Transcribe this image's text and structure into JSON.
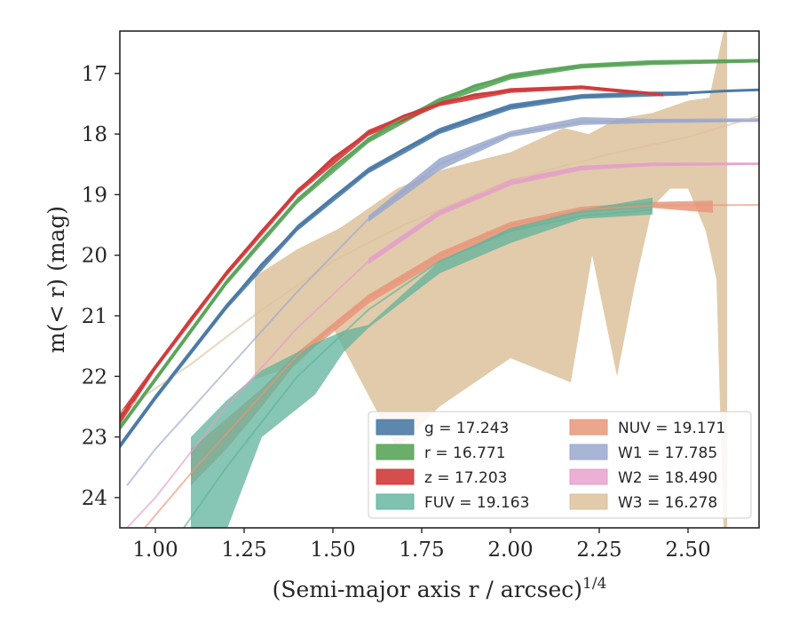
{
  "chart_data": {
    "type": "area",
    "ylabel": "m(< r) (mag)",
    "xlabel_main": "(Semi-major axis r / arcsec)",
    "xlabel_sup": "1/4",
    "xlim": [
      0.9,
      2.7
    ],
    "ylim": [
      24.5,
      16.3
    ],
    "y_inverted": true,
    "xticks": [
      "1.00",
      "1.25",
      "1.50",
      "1.75",
      "2.00",
      "2.25",
      "2.50"
    ],
    "xtick_values": [
      1.0,
      1.25,
      1.5,
      1.75,
      2.0,
      2.25,
      2.5
    ],
    "yticks": [
      "17",
      "18",
      "19",
      "20",
      "21",
      "22",
      "23",
      "24"
    ],
    "ytick_values": [
      17,
      18,
      19,
      20,
      21,
      22,
      23,
      24
    ],
    "grid": false,
    "legend_placement": "lower-right",
    "series": [
      {
        "name": "g = 17.243",
        "band": "g",
        "value": "17.243",
        "color": "#4c7aa6",
        "curve": {
          "x": [
            0.9,
            1.0,
            1.1,
            1.2,
            1.3,
            1.4,
            1.5,
            1.6,
            1.7,
            1.8,
            1.9,
            2.0,
            2.1,
            2.2,
            2.3,
            2.4,
            2.5,
            2.6,
            2.7
          ],
          "y": [
            23.15,
            22.35,
            21.6,
            20.85,
            20.15,
            19.55,
            19.05,
            18.6,
            18.25,
            17.95,
            17.72,
            17.55,
            17.45,
            17.38,
            17.35,
            17.33,
            17.32,
            17.29,
            17.27
          ]
        },
        "band_data": {
          "x": [
            0.9,
            1.0,
            1.2,
            1.4,
            1.6,
            1.8,
            2.0,
            2.2,
            2.4,
            2.5
          ],
          "lo": [
            23.1,
            22.3,
            20.8,
            19.5,
            18.55,
            17.9,
            17.5,
            17.34,
            17.3,
            17.3
          ],
          "hi": [
            23.2,
            22.4,
            20.9,
            19.6,
            18.65,
            18.0,
            17.6,
            17.42,
            17.38,
            17.36
          ]
        },
        "alpha": 0.9
      },
      {
        "name": "r = 16.771",
        "band": "r",
        "value": "16.771",
        "color": "#5aa55a",
        "curve": {
          "x": [
            0.9,
            1.0,
            1.1,
            1.2,
            1.3,
            1.4,
            1.5,
            1.6,
            1.7,
            1.8,
            1.9,
            2.0,
            2.1,
            2.2,
            2.3,
            2.4,
            2.5,
            2.6,
            2.7
          ],
          "y": [
            22.85,
            22.05,
            21.25,
            20.45,
            19.75,
            19.1,
            18.55,
            18.1,
            17.72,
            17.45,
            17.2,
            17.05,
            16.95,
            16.88,
            16.84,
            16.82,
            16.81,
            16.8,
            16.79
          ]
        },
        "band_data": {
          "x": [
            0.9,
            1.0,
            1.2,
            1.4,
            1.6,
            1.8,
            2.0,
            2.2,
            2.4,
            2.7
          ],
          "lo": [
            22.8,
            22.0,
            20.4,
            19.05,
            18.05,
            17.4,
            17.0,
            16.84,
            16.78,
            16.76
          ],
          "hi": [
            22.9,
            22.1,
            20.5,
            19.15,
            18.15,
            17.5,
            17.1,
            16.92,
            16.86,
            16.82
          ]
        },
        "alpha": 0.9
      },
      {
        "name": "z = 17.203",
        "band": "z",
        "value": "17.203",
        "color": "#d03b3b",
        "curve": {
          "x": [
            0.9,
            1.0,
            1.1,
            1.2,
            1.3,
            1.4,
            1.5,
            1.6,
            1.7,
            1.8,
            1.9,
            2.0,
            2.1,
            2.2,
            2.3,
            2.43
          ],
          "y": [
            22.7,
            21.85,
            21.05,
            20.3,
            19.6,
            18.95,
            18.4,
            17.98,
            17.7,
            17.5,
            17.35,
            17.28,
            17.25,
            17.22,
            17.28,
            17.35
          ]
        },
        "band_data": {
          "x": [
            0.9,
            1.0,
            1.2,
            1.4,
            1.6,
            1.8,
            2.0,
            2.2,
            2.43
          ],
          "lo": [
            22.6,
            21.8,
            20.25,
            18.9,
            17.93,
            17.46,
            17.24,
            17.2,
            17.32
          ],
          "hi": [
            22.8,
            21.9,
            20.35,
            19.0,
            18.03,
            17.54,
            17.32,
            17.26,
            17.38
          ]
        },
        "alpha": 0.9
      },
      {
        "name": "FUV = 19.163",
        "band": "FUV",
        "value": "19.163",
        "color": "#5fb39b",
        "curve": {
          "x": [
            1.08,
            1.2,
            1.4,
            1.6,
            1.8,
            2.0,
            2.2,
            2.4
          ],
          "y": [
            24.5,
            23.5,
            22.0,
            20.9,
            20.1,
            19.6,
            19.35,
            19.25
          ]
        },
        "band_data": {
          "x": [
            1.1,
            1.2,
            1.3,
            1.45,
            1.53,
            1.6,
            1.8,
            2.0,
            2.2,
            2.4
          ],
          "lo": [
            23.0,
            22.4,
            21.9,
            21.45,
            21.25,
            21.15,
            20.1,
            19.55,
            19.25,
            19.05
          ],
          "hi": [
            24.55,
            24.55,
            23.0,
            22.3,
            21.6,
            21.2,
            20.3,
            19.8,
            19.4,
            19.33
          ]
        },
        "alpha": 0.75
      },
      {
        "name": "NUV = 19.171",
        "band": "NUV",
        "value": "19.171",
        "color": "#e8967a",
        "curve": {
          "x": [
            0.97,
            1.1,
            1.2,
            1.4,
            1.6,
            1.8,
            2.0,
            2.2,
            2.4,
            2.7
          ],
          "y": [
            24.5,
            23.6,
            22.95,
            21.65,
            20.7,
            20.0,
            19.5,
            19.25,
            19.18,
            19.17
          ]
        },
        "band_data": {
          "x": [
            1.1,
            1.2,
            1.3,
            1.4,
            1.6,
            1.8,
            2.0,
            2.2,
            2.4,
            2.57
          ],
          "lo": [
            23.2,
            22.7,
            22.2,
            21.6,
            20.65,
            19.95,
            19.45,
            19.2,
            19.12,
            19.1
          ],
          "hi": [
            23.8,
            23.2,
            22.5,
            21.75,
            20.8,
            20.1,
            19.6,
            19.3,
            19.22,
            19.3
          ]
        },
        "alpha": 0.85
      },
      {
        "name": "W1 = 17.785",
        "band": "W1",
        "value": "17.785",
        "color": "#9aa8cc",
        "curve": {
          "x": [
            0.92,
            1.0,
            1.2,
            1.4,
            1.6,
            1.8,
            2.0,
            2.2,
            2.4,
            2.7
          ],
          "y": [
            23.8,
            23.2,
            21.9,
            20.6,
            19.4,
            18.5,
            18.0,
            17.8,
            17.78,
            17.78
          ]
        },
        "band_data": {
          "x": [
            1.6,
            1.8,
            2.0,
            2.2,
            2.4,
            2.7
          ],
          "lo": [
            19.35,
            18.4,
            17.95,
            17.72,
            17.75,
            17.74
          ],
          "hi": [
            19.45,
            18.6,
            18.05,
            17.85,
            17.82,
            17.8
          ]
        },
        "alpha": 0.85
      },
      {
        "name": "W2 = 18.490",
        "band": "W2",
        "value": "18.490",
        "color": "#e59ccb",
        "curve": {
          "x": [
            0.92,
            1.0,
            1.2,
            1.4,
            1.6,
            1.8,
            2.0,
            2.2,
            2.4,
            2.7
          ],
          "y": [
            24.5,
            24.0,
            22.5,
            21.2,
            20.1,
            19.3,
            18.8,
            18.55,
            18.5,
            18.49
          ]
        },
        "band_data": {
          "x": [
            1.6,
            1.8,
            2.0,
            2.2,
            2.4,
            2.7
          ],
          "lo": [
            20.05,
            19.25,
            18.75,
            18.52,
            18.47,
            18.47
          ],
          "hi": [
            20.15,
            19.35,
            18.85,
            18.6,
            18.53,
            18.51
          ]
        },
        "alpha": 0.8
      },
      {
        "name": "W3 = 16.278",
        "band": "W3",
        "value": "16.278",
        "color": "#dcc29c",
        "curve": {
          "x": [
            0.9,
            1.1,
            1.3,
            1.5,
            1.7,
            1.9,
            2.1,
            2.3,
            2.5,
            2.7
          ],
          "y": [
            22.6,
            21.8,
            20.9,
            20.1,
            19.5,
            19.0,
            18.6,
            18.3,
            18.05,
            17.7
          ]
        },
        "band_polygon": {
          "x": [
            1.28,
            1.4,
            1.52,
            1.68,
            1.8,
            2.0,
            2.15,
            2.22,
            2.3,
            2.4,
            2.5,
            2.56,
            2.6,
            2.61,
            2.61,
            2.6,
            2.58,
            2.55,
            2.5,
            2.45,
            2.4,
            2.35,
            2.3,
            2.23,
            2.17,
            2.0,
            1.8,
            1.68,
            1.5,
            1.4,
            1.28
          ],
          "y": [
            20.35,
            19.9,
            19.55,
            18.9,
            18.6,
            18.3,
            17.9,
            18.0,
            17.75,
            17.65,
            17.45,
            17.4,
            16.3,
            16.3,
            24.5,
            24.5,
            20.4,
            19.6,
            18.9,
            18.9,
            19.2,
            20.5,
            22.0,
            20.0,
            22.1,
            21.7,
            22.5,
            23.2,
            21.2,
            21.8,
            22.05
          ]
        },
        "alpha": 0.85
      }
    ]
  }
}
